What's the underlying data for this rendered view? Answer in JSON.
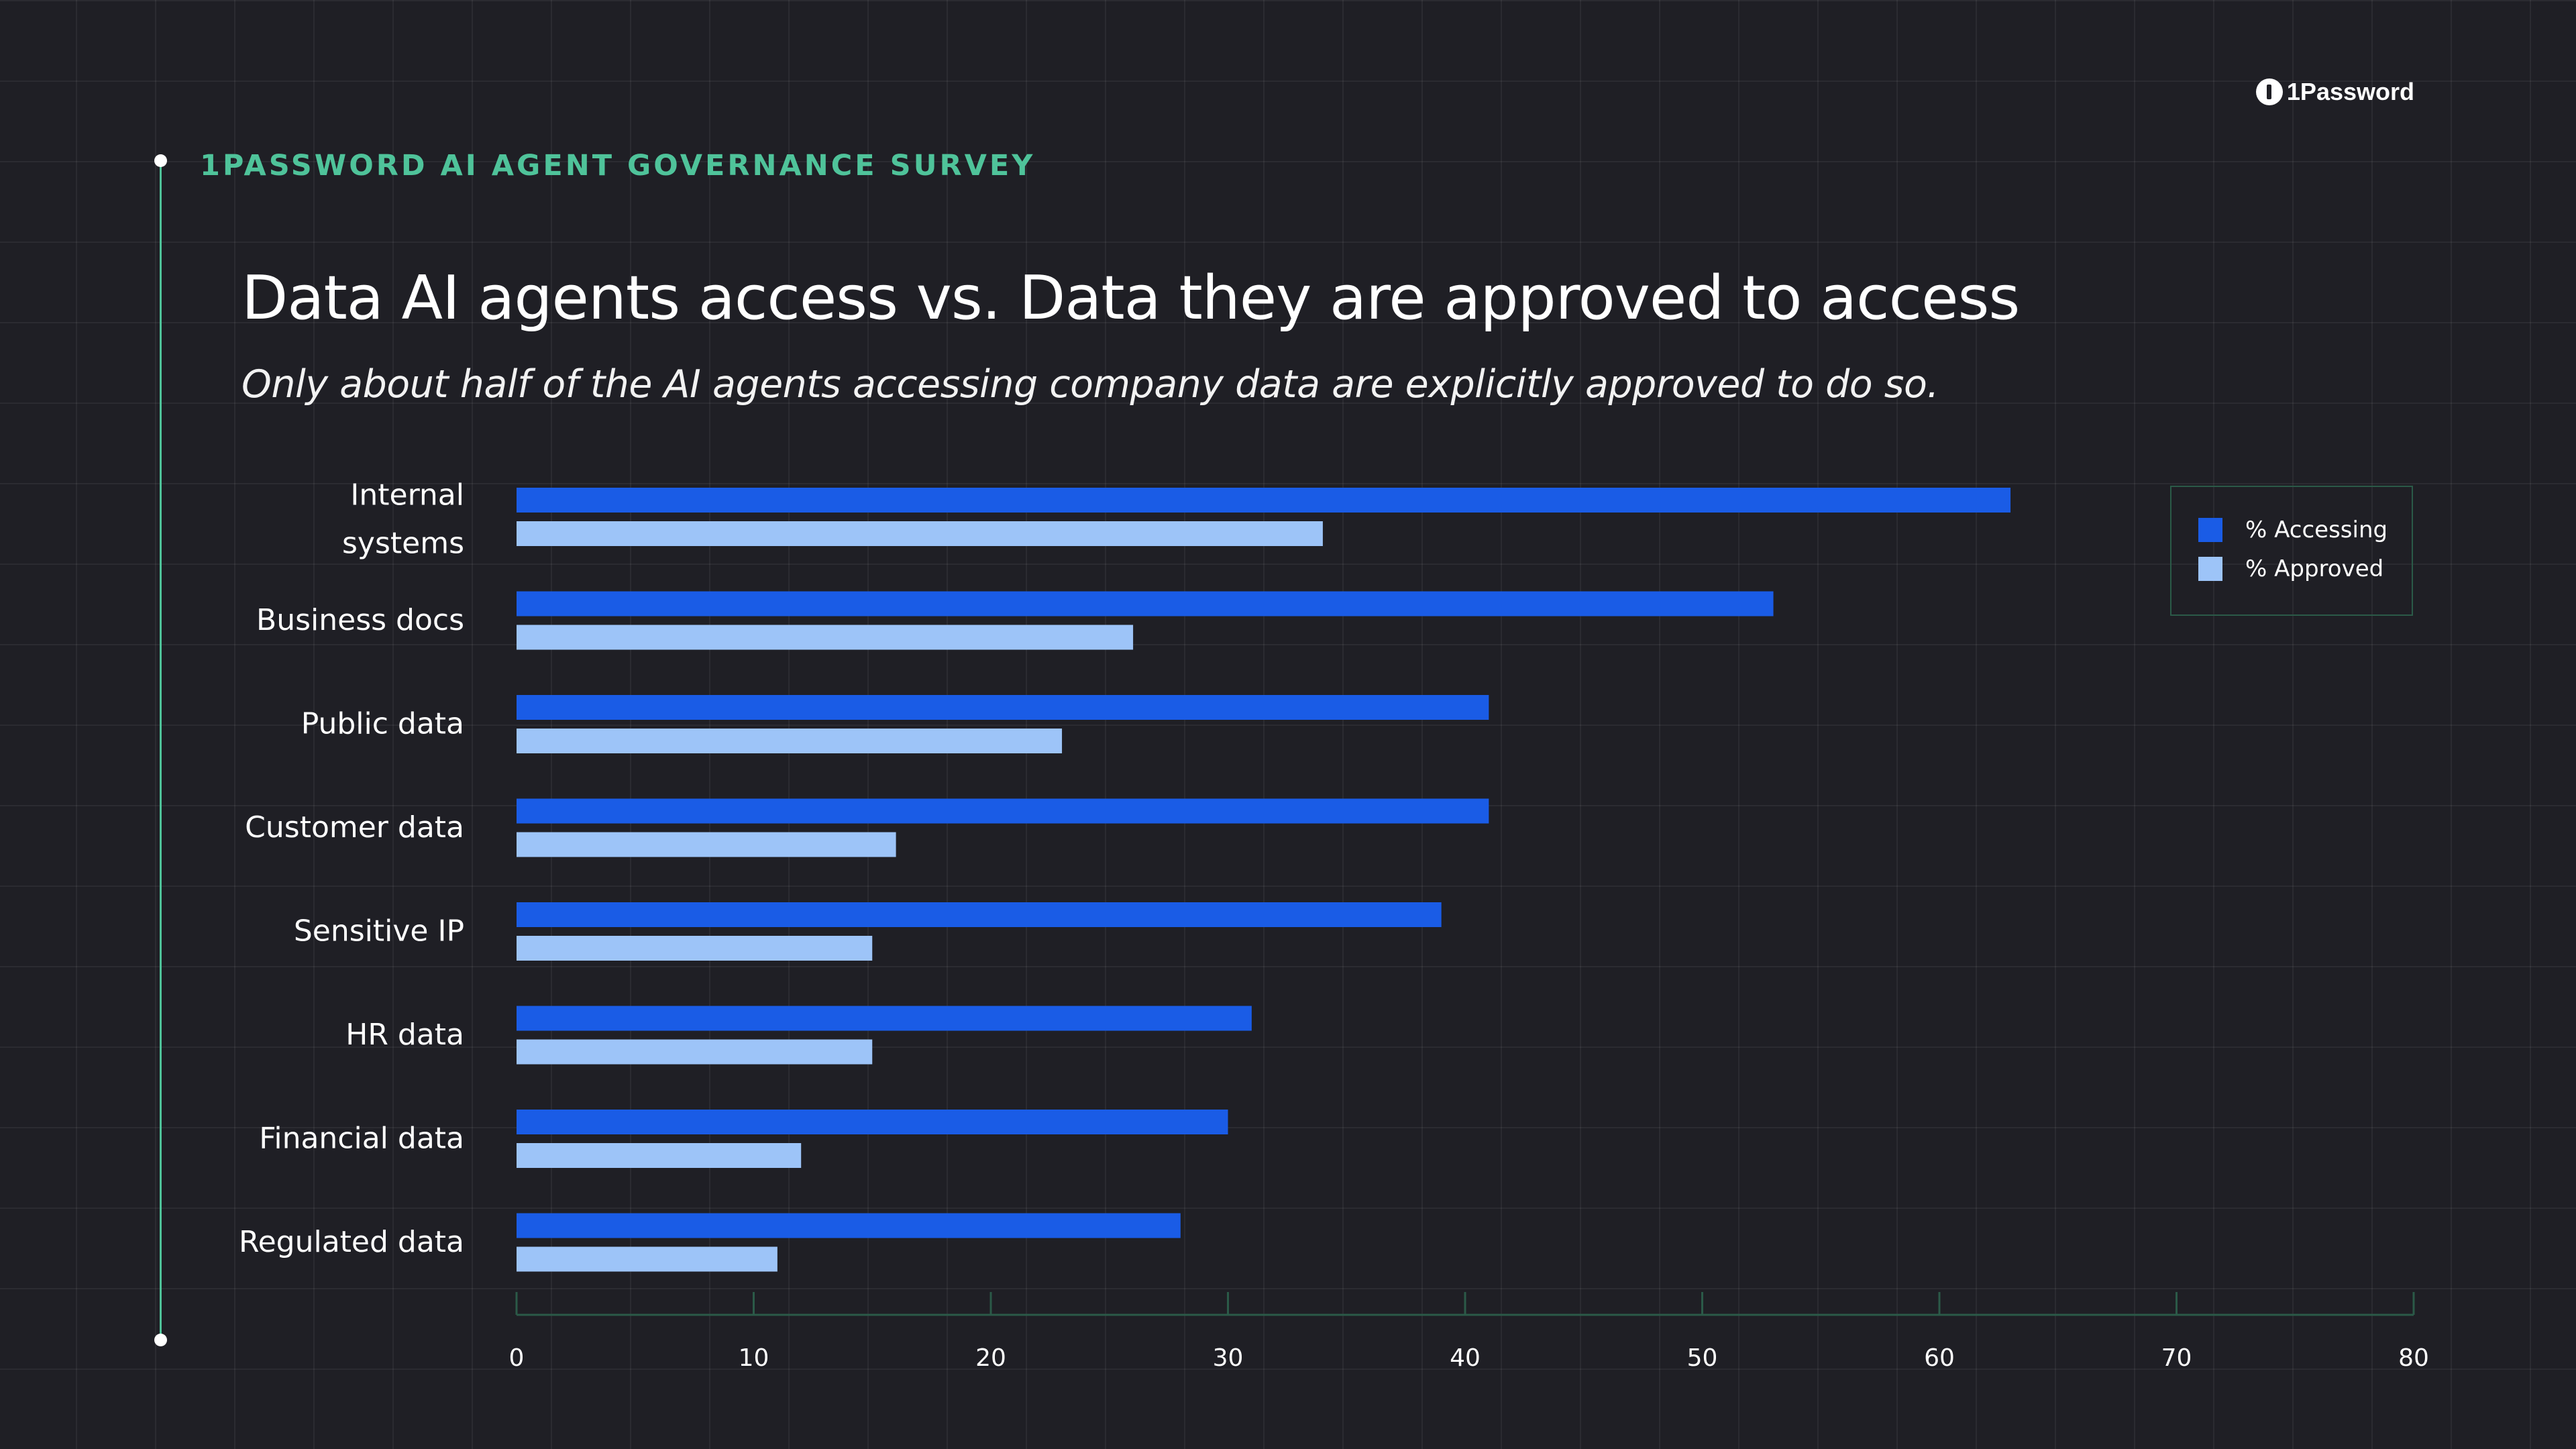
{
  "brand": {
    "name": "1Password"
  },
  "header": {
    "survey_label": "1PASSWORD AI AGENT GOVERNANCE SURVEY",
    "title": "Data AI agents access vs. Data they are approved to access",
    "subtitle": "Only about half of the AI agents accessing company data are explicitly approved to do so."
  },
  "colors": {
    "accessing": "#1a5ce6",
    "approved": "#9dc4f8",
    "accent": "#4fc39a",
    "background": "#1f1f25"
  },
  "chart_data": {
    "type": "bar",
    "orientation": "horizontal",
    "categories": [
      "Internal systems",
      "Business docs",
      "Public data",
      "Customer data",
      "Sensitive IP",
      "HR data",
      "Financial data",
      "Regulated data"
    ],
    "series": [
      {
        "name": "% Accessing",
        "values": [
          63,
          53,
          41,
          41,
          39,
          31,
          30,
          28
        ]
      },
      {
        "name": "% Approved",
        "values": [
          34,
          26,
          23,
          16,
          15,
          15,
          12,
          11
        ]
      }
    ],
    "xlim": [
      0,
      80
    ],
    "xticks": [
      "0",
      "10",
      "20",
      "30",
      "40",
      "50",
      "60",
      "70",
      "80"
    ],
    "legend": "top-right",
    "grid": true
  }
}
